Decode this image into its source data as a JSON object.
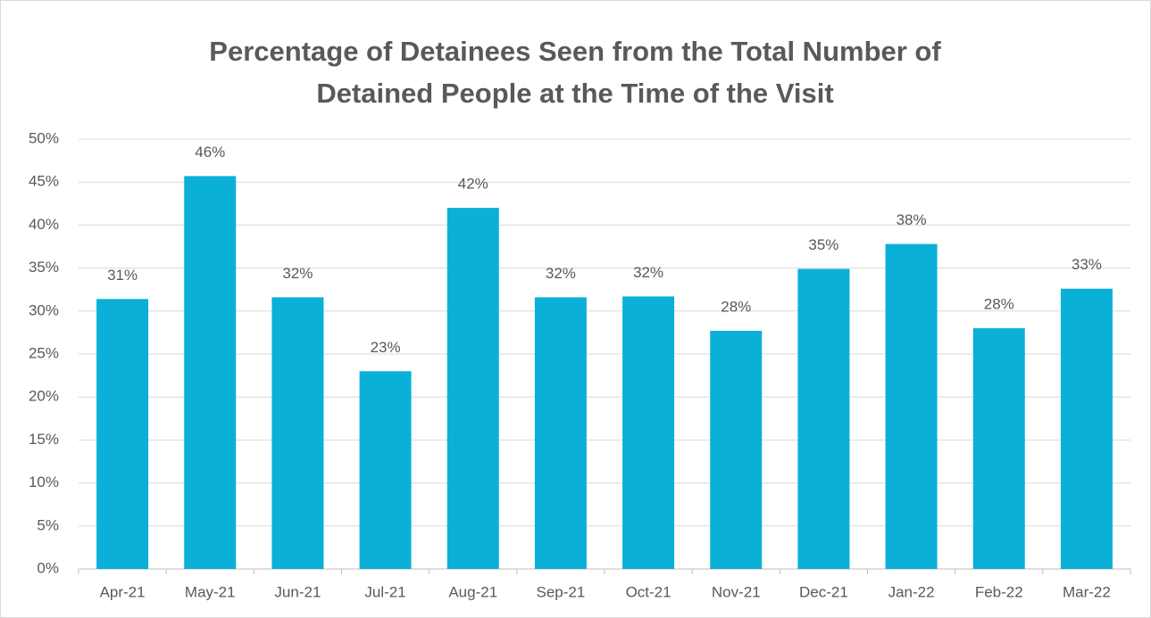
{
  "chart_data": {
    "type": "bar",
    "title": "Percentage of Detainees Seen from the Total Number of Detained People at the Time of the Visit",
    "categories": [
      "Apr-21",
      "May-21",
      "Jun-21",
      "Jul-21",
      "Aug-21",
      "Sep-21",
      "Oct-21",
      "Nov-21",
      "Dec-21",
      "Jan-22",
      "Feb-22",
      "Mar-22"
    ],
    "values": [
      31.4,
      45.7,
      31.6,
      23,
      42,
      31.6,
      31.7,
      27.7,
      34.9,
      37.8,
      28,
      32.6
    ],
    "value_labels": [
      "31%",
      "46%",
      "32%",
      "23%",
      "42%",
      "32%",
      "32%",
      "28%",
      "35%",
      "38%",
      "28%",
      "33%"
    ],
    "color": "#0bb0d8",
    "ylim": [
      0,
      50
    ],
    "yticks": [
      {
        "value": 0,
        "label": "0%"
      },
      {
        "value": 5,
        "label": "5%"
      },
      {
        "value": 10,
        "label": "10%"
      },
      {
        "value": 15,
        "label": "15%"
      },
      {
        "value": 20,
        "label": "20%"
      },
      {
        "value": 25,
        "label": "25%"
      },
      {
        "value": 30,
        "label": "30%"
      },
      {
        "value": 35,
        "label": "35%"
      },
      {
        "value": 40,
        "label": "40%"
      },
      {
        "value": 45,
        "label": "45%"
      },
      {
        "value": 50,
        "label": "50%"
      }
    ],
    "grid": true
  }
}
